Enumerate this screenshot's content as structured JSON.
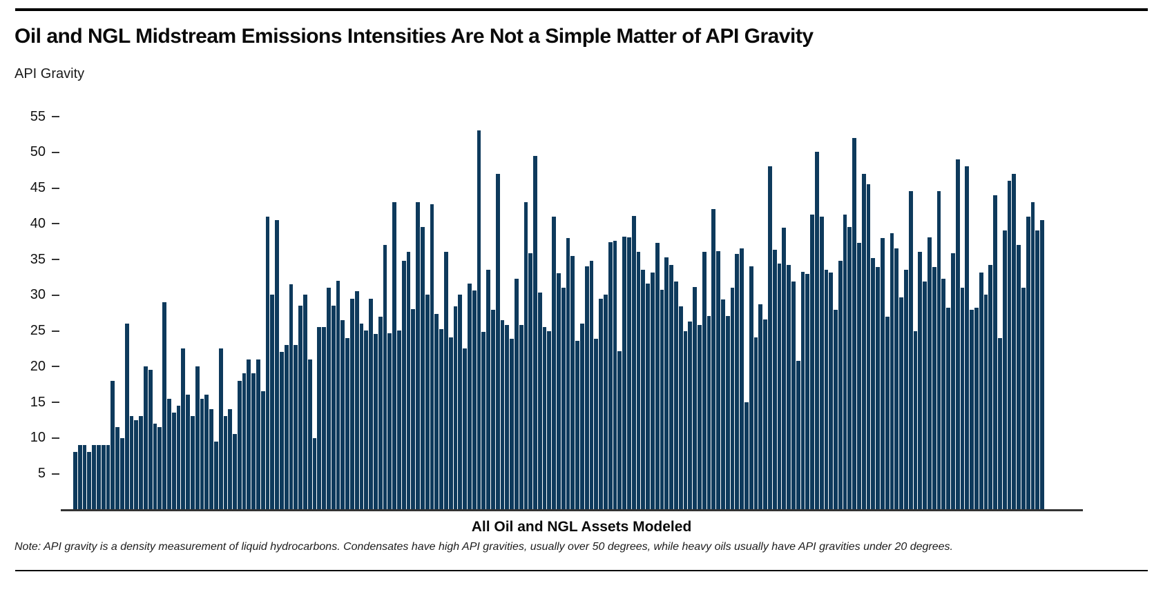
{
  "header": {
    "title": "Oil and NGL Midstream Emissions Intensities Are Not a Simple Matter of API Gravity"
  },
  "axes": {
    "y_axis_title": "API Gravity",
    "x_axis_label": "All Oil and NGL Assets Modeled"
  },
  "note": "Note: API gravity is a density measurement of liquid hydrocarbons. Condensates have high API gravities, usually over 50 degrees, while heavy oils usually have API gravities under 20 degrees.",
  "colors": {
    "bar": "#0E3A5C",
    "axis_line": "#333333",
    "rule": "#000000",
    "text": "#0a0a0a"
  },
  "chart_data": {
    "type": "bar",
    "title": "Oil and NGL Midstream Emissions Intensities Are Not a Simple Matter of API Gravity",
    "xlabel": "All Oil and NGL Assets Modeled",
    "ylabel": "API Gravity",
    "ylim": [
      0,
      57
    ],
    "yticks": [
      5,
      10,
      15,
      20,
      25,
      30,
      35,
      40,
      45,
      50,
      55
    ],
    "grid": false,
    "legend": "none",
    "bar_color": "#0E3A5C",
    "values": [
      8,
      9,
      9,
      8,
      9,
      9,
      9,
      9,
      18,
      11.5,
      10,
      26,
      13,
      12.5,
      13,
      20,
      19.5,
      12,
      11.5,
      29,
      15.5,
      13.5,
      14.5,
      22.5,
      16,
      13,
      20,
      15.5,
      16,
      14,
      9.5,
      22.5,
      13,
      14,
      10.5,
      18,
      19,
      21,
      19,
      21,
      16.5,
      41,
      30,
      40.5,
      22,
      23,
      31.5,
      23,
      28.5,
      30,
      21,
      10,
      25.5,
      25.5,
      31,
      28.5,
      32,
      26.5,
      24,
      29.5,
      30.5,
      26,
      25,
      29.5,
      24.5,
      27,
      37,
      24.6,
      43,
      25,
      34.8,
      36,
      28,
      43,
      39.5,
      30,
      42.7,
      27.3,
      25.2,
      36,
      24.1,
      28.4,
      30,
      22.5,
      31.6,
      30.6,
      53,
      24.8,
      33.5,
      27.9,
      47,
      26.5,
      25.8,
      23.9,
      32.3,
      25.8,
      43,
      35.8,
      49.5,
      30.3,
      25.5,
      24.9,
      41,
      33,
      31,
      38,
      35.5,
      23.6,
      26,
      34,
      34.8,
      23.9,
      29.5,
      30,
      37.4,
      37.6,
      22.1,
      38.2,
      38.1,
      41.1,
      36,
      33.5,
      31.6,
      33.1,
      37.3,
      30.7,
      35.3,
      34.2,
      31.9,
      28.4,
      24.9,
      26.3,
      31.1,
      25.8,
      36,
      27.1,
      42,
      36.1,
      29.4,
      27.1,
      31,
      35.7,
      36.5,
      15,
      34,
      24.1,
      28.7,
      26.6,
      48,
      36.3,
      34.4,
      39.4,
      34.2,
      31.9,
      20.8,
      33.2,
      32.9,
      41.3,
      50,
      41,
      33.5,
      33.1,
      27.9,
      34.8,
      41.3,
      39.5,
      52,
      37.3,
      47,
      45.5,
      35.2,
      33.9,
      38,
      27,
      38.6,
      36.5,
      29.7,
      33.5,
      44.5,
      24.9,
      36,
      31.9,
      38.1,
      33.9,
      44.5,
      32.3,
      28.2,
      35.8,
      49,
      31,
      48,
      27.9,
      28.2,
      33.1,
      30,
      34.2,
      44,
      24,
      39,
      46,
      47,
      37,
      31,
      41,
      43,
      39,
      40.5
    ]
  }
}
